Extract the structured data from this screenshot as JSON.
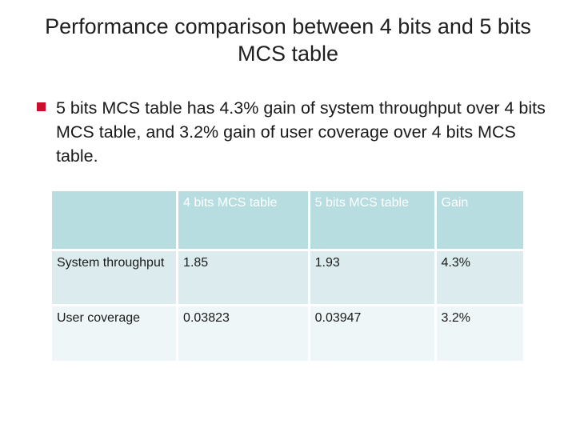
{
  "title": {
    "line1": "Performance comparison between 4 bits and 5 bits",
    "line2": "MCS table"
  },
  "bullet": {
    "text": "5 bits MCS table has 4.3% gain of system throughput over 4 bits MCS table, and 3.2% gain of user coverage over 4 bits MCS table."
  },
  "table": {
    "headers": [
      "",
      "4 bits MCS table",
      "5 bits MCS table",
      "Gain"
    ],
    "rows": [
      [
        "System throughput",
        "1.85",
        "1.93",
        "4.3%"
      ],
      [
        "User coverage",
        "0.03823",
        "0.03947",
        "3.2%"
      ]
    ]
  },
  "colors": {
    "bullet_marker": "#c8102e",
    "header_fill": "#b7dde0",
    "row1_fill": "#dcecee",
    "row2_fill": "#eef6f7"
  }
}
